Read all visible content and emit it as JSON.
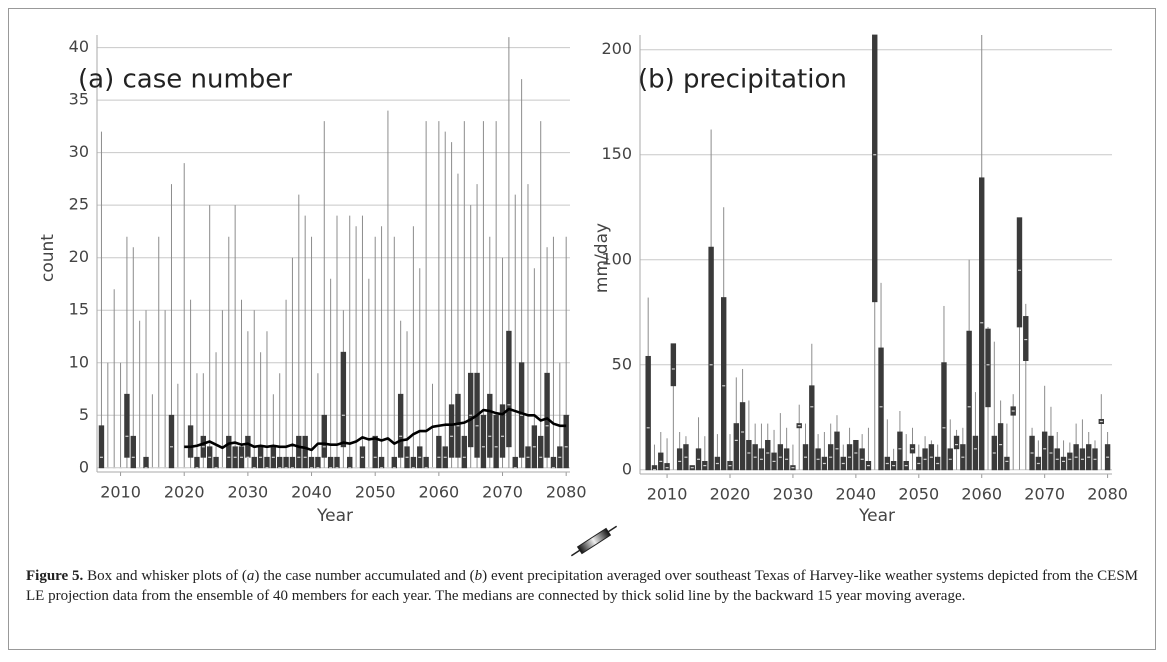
{
  "chart_data": [
    {
      "type": "box",
      "title": "(a) case number",
      "x_label": "Year",
      "y_label": "count",
      "xlim": [
        2006.3,
        2080.6
      ],
      "xticks": [
        2010,
        2020,
        2030,
        2040,
        2050,
        2060,
        2070,
        2080
      ],
      "ylim": [
        -0.4,
        41.2
      ],
      "yticks": [
        0,
        5,
        10,
        15,
        20,
        25,
        30,
        35,
        40
      ],
      "grid": true,
      "box_color": "#3a3a3a",
      "whisker_color": "#8c8c8c",
      "median_color": "#d0d0d0",
      "line_color": "#000000",
      "x": [
        2007,
        2008,
        2009,
        2010,
        2011,
        2012,
        2013,
        2014,
        2015,
        2016,
        2017,
        2018,
        2019,
        2020,
        2021,
        2022,
        2023,
        2024,
        2025,
        2026,
        2027,
        2028,
        2029,
        2030,
        2031,
        2032,
        2033,
        2034,
        2035,
        2036,
        2037,
        2038,
        2039,
        2040,
        2041,
        2042,
        2043,
        2044,
        2045,
        2046,
        2047,
        2048,
        2049,
        2050,
        2051,
        2052,
        2053,
        2054,
        2055,
        2056,
        2057,
        2058,
        2059,
        2060,
        2061,
        2062,
        2063,
        2064,
        2065,
        2066,
        2067,
        2068,
        2069,
        2070,
        2071,
        2072,
        2073,
        2074,
        2075,
        2076,
        2077,
        2078,
        2079,
        2080
      ],
      "max": [
        32,
        10,
        17,
        10,
        22,
        21,
        14,
        15,
        7,
        22,
        15,
        27,
        8,
        29,
        16,
        9,
        9,
        25,
        11,
        15,
        22,
        25,
        16,
        13,
        15,
        11,
        13,
        7,
        9,
        16,
        20,
        26,
        24,
        22,
        9,
        33,
        18,
        24,
        15,
        24,
        23,
        24,
        18,
        22,
        23,
        34,
        22,
        14,
        13,
        23,
        19,
        33,
        8,
        33,
        32,
        31,
        28,
        33,
        25,
        27,
        33,
        22,
        33,
        20,
        41,
        26,
        37,
        27,
        19,
        33,
        21,
        22,
        10,
        22
      ],
      "q3": [
        4,
        0,
        0,
        0,
        7,
        3,
        0,
        1,
        0,
        0,
        0,
        5,
        0,
        0,
        4,
        1,
        3,
        2,
        1,
        0,
        3,
        2,
        2,
        3,
        1,
        2,
        1,
        2,
        1,
        1,
        1,
        3,
        3,
        1,
        1,
        5,
        1,
        1,
        11,
        1,
        0,
        2,
        0,
        3,
        1,
        0,
        1,
        7,
        2,
        1,
        2,
        1,
        0,
        3,
        2,
        6,
        7,
        3,
        9,
        9,
        5,
        7,
        5,
        6,
        13,
        1,
        10,
        2,
        4,
        3,
        9,
        1,
        2,
        5
      ],
      "median": [
        1,
        0,
        0,
        0,
        3,
        1,
        0,
        0,
        0,
        0,
        0,
        2,
        0,
        0,
        2,
        0,
        2,
        1,
        0,
        0,
        1,
        1,
        1,
        1,
        0,
        1,
        0,
        1,
        0,
        0,
        0,
        1,
        1,
        0,
        0,
        2,
        0,
        0,
        5,
        0,
        0,
        1,
        0,
        1,
        0,
        0,
        0,
        3,
        1,
        0,
        1,
        0,
        0,
        1,
        1,
        3,
        4,
        1,
        5,
        4,
        2,
        3,
        2,
        3,
        6,
        0,
        5,
        1,
        2,
        1,
        4,
        0,
        1,
        2
      ],
      "q1": [
        0,
        0,
        0,
        0,
        1,
        0,
        0,
        0,
        0,
        0,
        0,
        0,
        0,
        0,
        1,
        0,
        1,
        0,
        0,
        0,
        0,
        0,
        0,
        1,
        0,
        0,
        0,
        0,
        0,
        0,
        0,
        0,
        0,
        0,
        0,
        1,
        0,
        0,
        2,
        0,
        0,
        0,
        0,
        0,
        0,
        0,
        0,
        1,
        0,
        0,
        0,
        0,
        0,
        0,
        0,
        1,
        1,
        0,
        2,
        1,
        0,
        1,
        0,
        1,
        2,
        0,
        1,
        0,
        0,
        0,
        1,
        0,
        0,
        0
      ],
      "min": [
        0,
        0,
        0,
        0,
        0,
        0,
        0,
        0,
        0,
        0,
        0,
        0,
        0,
        0,
        0,
        0,
        0,
        0,
        0,
        0,
        0,
        0,
        0,
        0,
        0,
        0,
        0,
        0,
        0,
        0,
        0,
        0,
        0,
        0,
        0,
        0,
        0,
        0,
        0,
        0,
        0,
        0,
        0,
        0,
        0,
        0,
        0,
        0,
        0,
        0,
        0,
        0,
        0,
        0,
        0,
        0,
        0,
        0,
        0,
        0,
        0,
        0,
        0,
        0,
        0,
        0,
        0,
        0,
        0,
        0,
        0,
        0,
        0,
        0
      ],
      "line_values": [
        null,
        null,
        null,
        null,
        null,
        null,
        null,
        null,
        null,
        null,
        null,
        null,
        null,
        2,
        2,
        2.1,
        2.3,
        2.5,
        2.2,
        1.9,
        2.3,
        2.4,
        2.2,
        2.3,
        2.0,
        2.1,
        2.0,
        2.1,
        2.0,
        2.0,
        2.2,
        2.0,
        1.9,
        1.7,
        2.3,
        2.3,
        2.2,
        2.2,
        2.4,
        2.3,
        2.5,
        2.9,
        2.7,
        2.8,
        2.6,
        2.8,
        2.3,
        2.6,
        2.7,
        3.2,
        3.5,
        3.5,
        3.9,
        4.0,
        4.1,
        4.1,
        4.2,
        4.3,
        4.6,
        5.0,
        5.5,
        5.4,
        5.2,
        5.1,
        5.6,
        5.4,
        5.2,
        5.0,
        5.0,
        4.5,
        4.7,
        4.2,
        4.0,
        4.0
      ]
    },
    {
      "type": "box",
      "title": "(b) precipitation",
      "x_label": "Year",
      "y_label": "mm/day",
      "xlim": [
        2005.7,
        2080.7
      ],
      "xticks": [
        2010,
        2020,
        2030,
        2040,
        2050,
        2060,
        2070,
        2080
      ],
      "ylim": [
        -2,
        207
      ],
      "yticks": [
        0,
        50,
        100,
        150,
        200
      ],
      "grid": true,
      "box_color": "#3a3a3a",
      "whisker_color": "#8c8c8c",
      "median_color": "#d0d0d0",
      "x": [
        2007,
        2008,
        2009,
        2010,
        2011,
        2012,
        2013,
        2014,
        2015,
        2016,
        2017,
        2018,
        2019,
        2020,
        2021,
        2022,
        2023,
        2024,
        2025,
        2026,
        2027,
        2028,
        2029,
        2030,
        2031,
        2032,
        2033,
        2034,
        2035,
        2036,
        2037,
        2038,
        2039,
        2040,
        2041,
        2042,
        2043,
        2044,
        2045,
        2046,
        2047,
        2048,
        2049,
        2050,
        2051,
        2052,
        2053,
        2054,
        2055,
        2056,
        2057,
        2058,
        2059,
        2060,
        2061,
        2062,
        2063,
        2064,
        2065,
        2066,
        2067,
        2068,
        2069,
        2070,
        2071,
        2072,
        2073,
        2074,
        2075,
        2076,
        2077,
        2078,
        2079,
        2080
      ],
      "max": [
        82,
        12,
        18,
        15,
        60,
        18,
        16,
        2,
        25,
        16,
        162,
        17,
        125,
        17,
        44,
        48,
        33,
        22,
        22,
        22,
        19,
        27,
        20,
        12,
        31,
        22,
        60,
        17,
        18,
        22,
        26,
        12,
        20,
        14,
        17,
        20,
        207,
        89,
        24,
        10,
        28,
        17,
        20,
        12,
        16,
        14,
        12,
        78,
        24,
        19,
        20,
        100,
        37,
        207,
        68,
        61,
        33,
        22,
        36,
        120,
        79,
        20,
        14,
        40,
        30,
        18,
        14,
        13,
        22,
        24,
        18,
        14,
        36,
        18
      ],
      "q3": [
        54,
        2,
        8,
        3,
        60,
        10,
        12,
        2,
        10,
        4,
        106,
        6,
        82,
        4,
        22,
        32,
        14,
        12,
        10,
        14,
        8,
        12,
        10,
        2,
        22,
        12,
        40,
        10,
        6,
        12,
        18,
        6,
        12,
        14,
        10,
        4,
        207,
        58,
        6,
        4,
        18,
        4,
        12,
        6,
        10,
        12,
        6,
        51,
        10,
        16,
        12,
        66,
        16,
        139,
        67,
        16,
        22,
        6,
        30,
        120,
        73,
        16,
        6,
        18,
        16,
        10,
        6,
        8,
        12,
        10,
        12,
        10,
        24,
        12
      ],
      "median": [
        20,
        0,
        4,
        1,
        48,
        4,
        6,
        1,
        5,
        2,
        50,
        3,
        40,
        2,
        14,
        18,
        8,
        6,
        5,
        8,
        4,
        6,
        5,
        1,
        21,
        6,
        30,
        5,
        3,
        6,
        10,
        3,
        6,
        8,
        5,
        2,
        150,
        30,
        3,
        2,
        10,
        2,
        10,
        3,
        5,
        6,
        3,
        20,
        5,
        12,
        6,
        30,
        10,
        70,
        50,
        8,
        12,
        4,
        28,
        95,
        62,
        8,
        3,
        10,
        8,
        5,
        4,
        5,
        6,
        5,
        6,
        5,
        23,
        6
      ],
      "q1": [
        0,
        0,
        0,
        0,
        40,
        0,
        0,
        0,
        0,
        0,
        0,
        0,
        0,
        0,
        0,
        0,
        0,
        0,
        0,
        0,
        0,
        0,
        0,
        0,
        20,
        0,
        0,
        0,
        0,
        0,
        0,
        0,
        0,
        0,
        0,
        0,
        80,
        0,
        0,
        0,
        0,
        0,
        8,
        0,
        0,
        0,
        0,
        0,
        0,
        10,
        0,
        0,
        0,
        0,
        30,
        0,
        0,
        0,
        26,
        68,
        52,
        0,
        0,
        0,
        0,
        0,
        0,
        0,
        0,
        0,
        0,
        0,
        22,
        0
      ],
      "min": [
        0,
        0,
        0,
        0,
        0,
        0,
        0,
        0,
        0,
        0,
        0,
        0,
        0,
        0,
        0,
        0,
        0,
        0,
        0,
        0,
        0,
        0,
        0,
        0,
        0,
        0,
        0,
        0,
        0,
        0,
        0,
        0,
        0,
        0,
        0,
        0,
        0,
        0,
        0,
        0,
        0,
        0,
        0,
        0,
        0,
        0,
        0,
        0,
        0,
        0,
        0,
        0,
        0,
        0,
        0,
        0,
        0,
        0,
        0,
        0,
        0,
        0,
        0,
        0,
        0,
        0,
        0,
        0,
        0,
        0,
        0,
        0,
        0,
        0
      ]
    }
  ],
  "caption": {
    "label": "Figure 5.",
    "parts": [
      {
        "text": " Box and whisker plots of (",
        "italic": false
      },
      {
        "text": "a",
        "italic": true
      },
      {
        "text": ") the case number accumulated and (",
        "italic": false
      },
      {
        "text": "b",
        "italic": true
      },
      {
        "text": ") event precipitation averaged over southeast Texas of Harvey-like weather systems depicted from the CESM LE projection data from the ensemble of 40 members for each year. The medians are connected by thick solid line by the backward 15 year moving average.",
        "italic": false
      }
    ]
  }
}
